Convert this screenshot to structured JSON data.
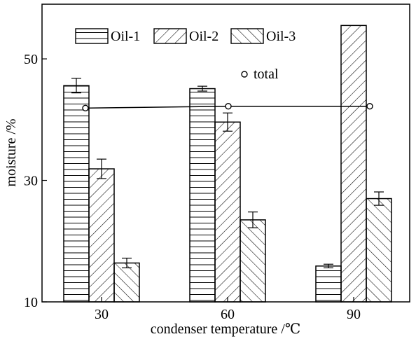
{
  "chart_data": {
    "type": "bar",
    "title": "",
    "xlabel": "condenser temperature /℃",
    "ylabel": "moisture /%",
    "ylim": [
      10,
      59
    ],
    "yticks": [
      10,
      30,
      50
    ],
    "categories": [
      "30",
      "60",
      "90"
    ],
    "series": [
      {
        "name": "Oil-1",
        "values": [
          45.6,
          45.1,
          15.9
        ],
        "errors": [
          1.2,
          0.4,
          0.3
        ],
        "pattern": "horizontal"
      },
      {
        "name": "Oil-2",
        "values": [
          31.9,
          39.6,
          55.5
        ],
        "errors": [
          1.6,
          1.5,
          0
        ],
        "pattern": "diagonal-right"
      },
      {
        "name": "Oil-3",
        "values": [
          16.4,
          23.5,
          27.0
        ],
        "errors": [
          0.8,
          1.3,
          1.1
        ],
        "pattern": "diagonal-left"
      }
    ],
    "line_series": {
      "name": "total",
      "values": [
        41.9,
        42.2,
        42.2
      ]
    },
    "grid": false,
    "legend_position": "top"
  }
}
